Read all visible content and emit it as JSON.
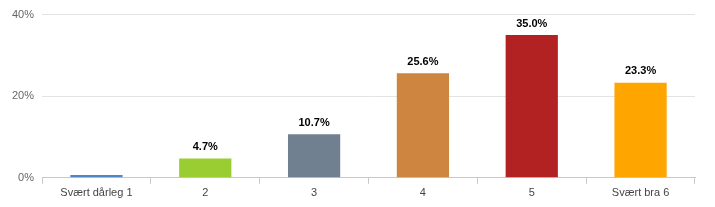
{
  "chart_data": {
    "type": "bar",
    "categories": [
      "Svært dårleg 1",
      "2",
      "3",
      "4",
      "5",
      "Svært bra 6"
    ],
    "values": [
      0.7,
      4.7,
      10.7,
      25.6,
      35.0,
      23.3
    ],
    "value_labels": [
      null,
      "4.7%",
      "10.7%",
      "25.6%",
      "35.0%",
      "23.3%"
    ],
    "colors": [
      "#4f86c6",
      "#9acd32",
      "#708090",
      "#cd853f",
      "#b22222",
      "#ffa500"
    ],
    "ylim": [
      0,
      40
    ],
    "yticks": [
      {
        "value": 0,
        "label": "0%"
      },
      {
        "value": 20,
        "label": "20%"
      },
      {
        "value": 40,
        "label": "40%"
      }
    ],
    "grid": true,
    "data_labels": true
  }
}
